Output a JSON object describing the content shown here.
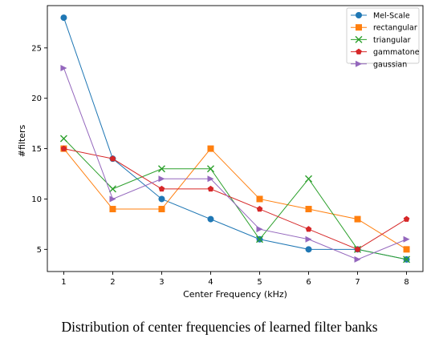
{
  "caption": "Distribution of center frequencies of learned filter banks",
  "chart_data": {
    "type": "line",
    "title": "",
    "xlabel": "Center Frequency (kHz)",
    "ylabel": "#filters",
    "x": [
      1,
      2,
      3,
      4,
      5,
      6,
      7,
      8
    ],
    "xticks": [
      1,
      2,
      3,
      4,
      5,
      6,
      7,
      8
    ],
    "yticks": [
      5,
      10,
      15,
      20,
      25
    ],
    "xlim": [
      0.665,
      8.335
    ],
    "ylim": [
      2.8,
      29.2
    ],
    "grid": false,
    "legend_position": "top-right",
    "series": [
      {
        "name": "Mel-Scale",
        "color": "#1f77b4",
        "marker": "circle",
        "values": [
          28,
          14,
          10,
          8,
          6,
          5,
          5,
          4
        ]
      },
      {
        "name": "rectangular",
        "color": "#ff7f0e",
        "marker": "square",
        "values": [
          15,
          9,
          9,
          15,
          10,
          9,
          8,
          5
        ]
      },
      {
        "name": "triangular",
        "color": "#2ca02c",
        "marker": "x",
        "values": [
          16,
          11,
          13,
          13,
          6,
          12,
          5,
          4
        ]
      },
      {
        "name": "gammatone",
        "color": "#d62728",
        "marker": "pentagon",
        "values": [
          15,
          14,
          11,
          11,
          9,
          7,
          5,
          8
        ]
      },
      {
        "name": "gaussian",
        "color": "#9467bd",
        "marker": "triangle-right",
        "values": [
          23,
          10,
          12,
          12,
          7,
          6,
          4,
          6
        ]
      }
    ]
  }
}
